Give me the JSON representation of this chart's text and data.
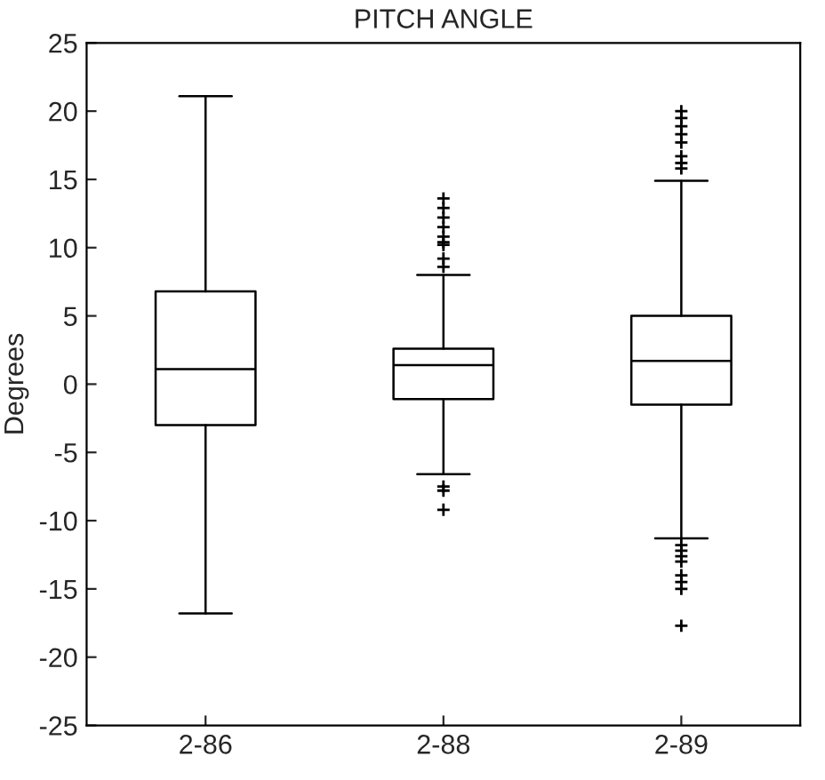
{
  "chart_data": {
    "type": "box",
    "title": "PITCH ANGLE",
    "ylabel": "Degrees",
    "categories": [
      "2-86",
      "2-88",
      "2-89"
    ],
    "boxes": [
      {
        "low": -16.8,
        "q1": -3,
        "median": 1.1,
        "q3": 6.8,
        "high": 21.1
      },
      {
        "low": -6.6,
        "q1": -1.1,
        "median": 1.4,
        "q3": 2.6,
        "high": 8.0,
        "outliers": [
          13.6,
          12.9,
          12.2,
          11.5,
          10.8,
          10.4,
          10.2,
          9.2,
          8.6,
          -7.5,
          -7.8,
          -9.2
        ]
      },
      {
        "low": -11.3,
        "q1": -1.5,
        "median": 1.7,
        "q3": 5.0,
        "high": 14.9,
        "outliers": [
          20.0,
          19.5,
          18.9,
          18.3,
          17.7,
          16.7,
          16.2,
          15.8,
          -11.8,
          -12.2,
          -12.6,
          -13.0,
          -14.0,
          -14.5,
          -15.0,
          -17.7
        ]
      }
    ],
    "color": "#000000",
    "marker": "cross",
    "ylim": [
      -25,
      25
    ],
    "yticks": [
      -25,
      -20,
      -15,
      -10,
      -5,
      0,
      5,
      10,
      15,
      20,
      25
    ],
    "grid": false
  }
}
